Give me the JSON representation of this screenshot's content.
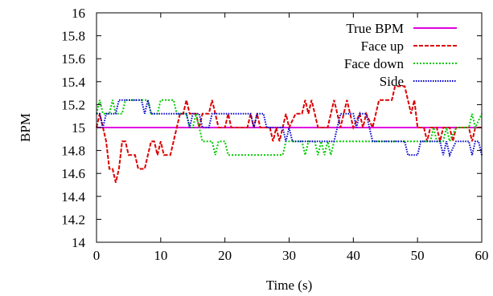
{
  "chart_data": {
    "type": "line",
    "title": "",
    "xlabel": "Time (s)",
    "ylabel": "BPM",
    "xlim": [
      0,
      60
    ],
    "ylim": [
      14,
      16
    ],
    "xticks": [
      0,
      10,
      20,
      30,
      40,
      50,
      60
    ],
    "yticks": [
      14,
      14.2,
      14.4,
      14.6,
      14.8,
      15,
      15.2,
      15.4,
      15.6,
      15.8,
      16
    ],
    "grid": false,
    "legend_position": "top-right",
    "series": [
      {
        "name": "True BPM",
        "color": "#e000e0",
        "dash": "solid",
        "points": [
          [
            0,
            15.0
          ],
          [
            60,
            15.0
          ]
        ]
      },
      {
        "name": "Face up",
        "color": "#dd0000",
        "dash": "dashed",
        "points": [
          [
            0,
            15.0
          ],
          [
            0.5,
            15.12
          ],
          [
            1,
            15.0
          ],
          [
            1.5,
            14.88
          ],
          [
            2,
            14.64
          ],
          [
            2.5,
            14.64
          ],
          [
            3,
            14.52
          ],
          [
            3.5,
            14.64
          ],
          [
            4,
            14.88
          ],
          [
            4.5,
            14.88
          ],
          [
            5,
            14.76
          ],
          [
            6,
            14.76
          ],
          [
            6.5,
            14.64
          ],
          [
            7.5,
            14.64
          ],
          [
            8,
            14.76
          ],
          [
            8.5,
            14.88
          ],
          [
            9,
            14.88
          ],
          [
            9.5,
            14.76
          ],
          [
            10,
            14.88
          ],
          [
            10.5,
            14.76
          ],
          [
            11.5,
            14.76
          ],
          [
            12,
            14.88
          ],
          [
            12.5,
            15.0
          ],
          [
            13,
            15.12
          ],
          [
            13.5,
            15.12
          ],
          [
            14,
            15.24
          ],
          [
            14.5,
            15.12
          ],
          [
            15.5,
            15.12
          ],
          [
            16,
            15.0
          ],
          [
            16.5,
            15.12
          ],
          [
            17.5,
            15.12
          ],
          [
            18,
            15.24
          ],
          [
            18.5,
            15.12
          ],
          [
            19,
            15.0
          ],
          [
            20,
            15.0
          ],
          [
            20.5,
            15.12
          ],
          [
            21,
            15.0
          ],
          [
            23.5,
            15.0
          ],
          [
            24,
            15.12
          ],
          [
            24.5,
            15.0
          ],
          [
            25,
            15.12
          ],
          [
            25.5,
            15.0
          ],
          [
            27,
            15.0
          ],
          [
            27.5,
            14.88
          ],
          [
            28,
            15.0
          ],
          [
            28.5,
            14.88
          ],
          [
            29,
            15.0
          ],
          [
            29.5,
            15.12
          ],
          [
            30,
            15.0
          ],
          [
            31,
            15.12
          ],
          [
            32,
            15.12
          ],
          [
            32.5,
            15.24
          ],
          [
            33,
            15.12
          ],
          [
            33.5,
            15.24
          ],
          [
            34,
            15.12
          ],
          [
            34.5,
            15.0
          ],
          [
            36,
            15.0
          ],
          [
            36.5,
            15.12
          ],
          [
            37,
            15.24
          ],
          [
            37.5,
            15.12
          ],
          [
            38,
            15.0
          ],
          [
            38.5,
            15.12
          ],
          [
            39,
            15.24
          ],
          [
            39.5,
            15.12
          ],
          [
            40,
            15.0
          ],
          [
            41,
            15.12
          ],
          [
            41.5,
            15.0
          ],
          [
            42,
            15.12
          ],
          [
            43,
            15.0
          ],
          [
            43.5,
            15.12
          ],
          [
            44,
            15.24
          ],
          [
            45,
            15.24
          ],
          [
            45.5,
            15.24
          ],
          [
            46,
            15.24
          ],
          [
            46.5,
            15.36
          ],
          [
            48,
            15.36
          ],
          [
            48.5,
            15.24
          ],
          [
            49,
            15.12
          ],
          [
            49.5,
            15.24
          ],
          [
            50,
            15.0
          ],
          [
            51,
            15.0
          ],
          [
            51.5,
            14.88
          ],
          [
            52,
            15.0
          ],
          [
            52.5,
            15.0
          ],
          [
            53,
            15.0
          ],
          [
            53.5,
            14.88
          ],
          [
            54,
            15.0
          ],
          [
            55,
            15.0
          ],
          [
            55.5,
            14.88
          ],
          [
            56,
            15.0
          ],
          [
            57,
            15.0
          ],
          [
            58,
            15.0
          ],
          [
            58.5,
            14.88
          ],
          [
            59,
            15.0
          ],
          [
            60,
            15.0
          ]
        ]
      },
      {
        "name": "Face down",
        "color": "#00cc00",
        "dash": "dotted",
        "points": [
          [
            0,
            15.12
          ],
          [
            0.5,
            15.24
          ],
          [
            1,
            15.12
          ],
          [
            2,
            15.12
          ],
          [
            2.5,
            15.24
          ],
          [
            3,
            15.12
          ],
          [
            4,
            15.12
          ],
          [
            4.5,
            15.24
          ],
          [
            8,
            15.24
          ],
          [
            8.5,
            15.12
          ],
          [
            9.5,
            15.12
          ],
          [
            10,
            15.24
          ],
          [
            12,
            15.24
          ],
          [
            12.5,
            15.12
          ],
          [
            14,
            15.12
          ],
          [
            14.5,
            15.0
          ],
          [
            15,
            15.0
          ],
          [
            15.5,
            15.12
          ],
          [
            16,
            15.0
          ],
          [
            16.5,
            14.88
          ],
          [
            18,
            14.88
          ],
          [
            18.5,
            14.76
          ],
          [
            19,
            14.88
          ],
          [
            20,
            14.88
          ],
          [
            20.5,
            14.76
          ],
          [
            29,
            14.76
          ],
          [
            29.5,
            14.88
          ],
          [
            32,
            14.88
          ],
          [
            32.5,
            14.76
          ],
          [
            33,
            14.88
          ],
          [
            34,
            14.88
          ],
          [
            34.5,
            14.76
          ],
          [
            35,
            14.88
          ],
          [
            35.5,
            14.76
          ],
          [
            36,
            14.88
          ],
          [
            36.5,
            14.76
          ],
          [
            37,
            14.88
          ],
          [
            38,
            14.88
          ],
          [
            38.5,
            14.88
          ],
          [
            50,
            14.88
          ],
          [
            52,
            14.88
          ],
          [
            52.5,
            15.0
          ],
          [
            53,
            14.88
          ],
          [
            54,
            14.88
          ],
          [
            54.5,
            15.0
          ],
          [
            55,
            14.88
          ],
          [
            56,
            15.0
          ],
          [
            57,
            15.0
          ],
          [
            58,
            15.0
          ],
          [
            58.5,
            15.12
          ],
          [
            59,
            15.0
          ],
          [
            60,
            15.12
          ]
        ]
      },
      {
        "name": "Side",
        "color": "#0000cc",
        "dash": "dotted-dense",
        "points": [
          [
            0,
            15.12
          ],
          [
            0.5,
            15.12
          ],
          [
            1,
            15.0
          ],
          [
            1.5,
            15.12
          ],
          [
            3,
            15.12
          ],
          [
            3.5,
            15.24
          ],
          [
            7,
            15.24
          ],
          [
            7.5,
            15.12
          ],
          [
            8,
            15.24
          ],
          [
            8.5,
            15.12
          ],
          [
            14,
            15.12
          ],
          [
            14.5,
            15.0
          ],
          [
            15,
            15.12
          ],
          [
            16,
            15.12
          ],
          [
            16.5,
            15.0
          ],
          [
            17.5,
            15.0
          ],
          [
            18,
            15.12
          ],
          [
            24,
            15.12
          ],
          [
            24.5,
            15.0
          ],
          [
            25,
            15.12
          ],
          [
            26,
            15.12
          ],
          [
            26.5,
            15.0
          ],
          [
            29,
            15.0
          ],
          [
            29.5,
            14.88
          ],
          [
            30,
            15.0
          ],
          [
            30.5,
            14.88
          ],
          [
            37,
            14.88
          ],
          [
            37.5,
            15.0
          ],
          [
            38,
            15.12
          ],
          [
            40,
            15.12
          ],
          [
            40.5,
            15.0
          ],
          [
            41,
            15.12
          ],
          [
            42,
            15.12
          ],
          [
            42.5,
            15.0
          ],
          [
            43,
            14.88
          ],
          [
            45,
            14.88
          ],
          [
            45.5,
            14.88
          ],
          [
            46,
            14.88
          ],
          [
            46.5,
            14.88
          ],
          [
            48,
            14.88
          ],
          [
            48.5,
            14.76
          ],
          [
            50,
            14.76
          ],
          [
            50.5,
            14.88
          ],
          [
            52,
            14.88
          ],
          [
            53.5,
            14.88
          ],
          [
            54,
            14.76
          ],
          [
            54.5,
            14.88
          ],
          [
            55,
            14.76
          ],
          [
            56,
            14.88
          ],
          [
            57,
            14.88
          ],
          [
            58,
            14.88
          ],
          [
            58.5,
            14.76
          ],
          [
            59,
            14.88
          ],
          [
            59.5,
            14.88
          ],
          [
            60,
            14.76
          ]
        ]
      }
    ]
  }
}
